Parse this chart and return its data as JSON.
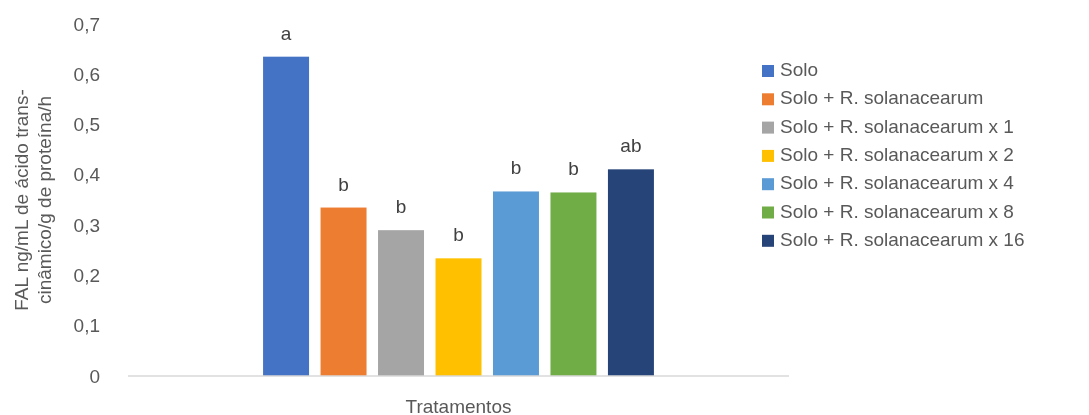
{
  "chart_data": {
    "type": "bar",
    "xlabel": "Tratamentos",
    "ylabel": "FAL ng/mL de ácido trans-cinâmico/g de proteína/h",
    "categories": [
      null
    ],
    "series": [
      {
        "name": "Solo",
        "color": "#4472c4",
        "values": [
          0.635
        ]
      },
      {
        "name": "Solo + R. solanacearum",
        "color": "#ed7d31",
        "values": [
          0.335
        ]
      },
      {
        "name": "Solo + R. solanacearum x 1",
        "color": "#a5a5a5",
        "values": [
          0.29
        ]
      },
      {
        "name": "Solo + R. solanacearum x 2",
        "color": "#ffc000",
        "values": [
          0.234
        ]
      },
      {
        "name": "Solo + R. solanacearum x 4",
        "color": "#5b9bd5",
        "values": [
          0.367
        ]
      },
      {
        "name": "Solo + R. solanacearum x 8",
        "color": "#70ad47",
        "values": [
          0.365
        ]
      },
      {
        "name": "Solo + R. solanacearum x 16",
        "color": "#264478",
        "values": [
          0.411
        ]
      }
    ],
    "annotations": [
      "a",
      "b",
      "b",
      "b",
      "b",
      "b",
      "ab"
    ],
    "ylim": [
      0,
      0.7
    ],
    "yticks": [
      {
        "value": 0,
        "label": "0"
      },
      {
        "value": 0.1,
        "label": "0,1"
      },
      {
        "value": 0.2,
        "label": "0,2"
      },
      {
        "value": 0.3,
        "label": "0,3"
      },
      {
        "value": 0.4,
        "label": "0,4"
      },
      {
        "value": 0.5,
        "label": "0,5"
      },
      {
        "value": 0.6,
        "label": "0,6"
      },
      {
        "value": 0.7,
        "label": "0,7"
      }
    ],
    "grid": false,
    "legend": "right"
  }
}
